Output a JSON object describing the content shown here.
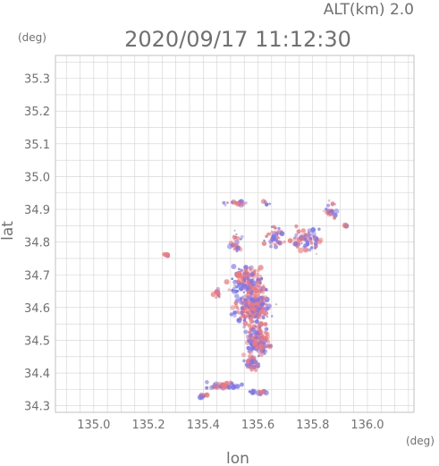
{
  "header": {
    "alt_label": "ALT(km) 2.0",
    "timestamp": "2020/09/17 11:12:30"
  },
  "colors": {
    "grid": "#d2d2d2",
    "frame": "#c0c0c0",
    "text": "#707070",
    "positive": "#f07878",
    "negative": "#7878f0"
  },
  "chart_data": {
    "type": "scatter",
    "title": "2020/09/17 11:12:30",
    "subtitle": "ALT(km) 2.0",
    "xlabel": "lon",
    "ylabel": "lat",
    "xunit": "(deg)",
    "yunit": "(deg)",
    "xlim": [
      134.86,
      136.17
    ],
    "ylim": [
      34.28,
      35.37
    ],
    "xticks": [
      "135.0",
      "135.2",
      "135.4",
      "135.6",
      "135.8",
      "136.0"
    ],
    "yticks": [
      "34.3",
      "34.4",
      "34.5",
      "34.6",
      "34.7",
      "34.8",
      "34.9",
      "35.0",
      "35.1",
      "35.2",
      "35.3"
    ],
    "grid": true,
    "clusters": [
      {
        "lon": 135.27,
        "lat": 34.76,
        "dlon": 0.02,
        "dlat": 0.01,
        "n": 6
      },
      {
        "lon": 135.52,
        "lat": 34.92,
        "dlon": 0.05,
        "dlat": 0.01,
        "n": 20
      },
      {
        "lon": 135.63,
        "lat": 34.92,
        "dlon": 0.02,
        "dlat": 0.01,
        "n": 6
      },
      {
        "lon": 135.52,
        "lat": 34.8,
        "dlon": 0.04,
        "dlat": 0.05,
        "n": 22
      },
      {
        "lon": 135.66,
        "lat": 34.82,
        "dlon": 0.05,
        "dlat": 0.05,
        "n": 40
      },
      {
        "lon": 135.78,
        "lat": 34.81,
        "dlon": 0.08,
        "dlat": 0.06,
        "n": 60
      },
      {
        "lon": 135.86,
        "lat": 34.9,
        "dlon": 0.03,
        "dlat": 0.03,
        "n": 24
      },
      {
        "lon": 135.92,
        "lat": 34.85,
        "dlon": 0.01,
        "dlat": 0.01,
        "n": 4
      },
      {
        "lon": 135.56,
        "lat": 34.68,
        "dlon": 0.08,
        "dlat": 0.06,
        "n": 160
      },
      {
        "lon": 135.58,
        "lat": 34.6,
        "dlon": 0.09,
        "dlat": 0.07,
        "n": 230
      },
      {
        "lon": 135.6,
        "lat": 34.5,
        "dlon": 0.06,
        "dlat": 0.07,
        "n": 150
      },
      {
        "lon": 135.58,
        "lat": 34.43,
        "dlon": 0.04,
        "dlat": 0.03,
        "n": 45
      },
      {
        "lon": 135.47,
        "lat": 34.36,
        "dlon": 0.08,
        "dlat": 0.02,
        "n": 45
      },
      {
        "lon": 135.6,
        "lat": 34.34,
        "dlon": 0.05,
        "dlat": 0.01,
        "n": 22
      },
      {
        "lon": 135.4,
        "lat": 34.33,
        "dlon": 0.03,
        "dlat": 0.01,
        "n": 14
      },
      {
        "lon": 135.45,
        "lat": 34.64,
        "dlon": 0.02,
        "dlat": 0.02,
        "n": 14
      }
    ]
  }
}
